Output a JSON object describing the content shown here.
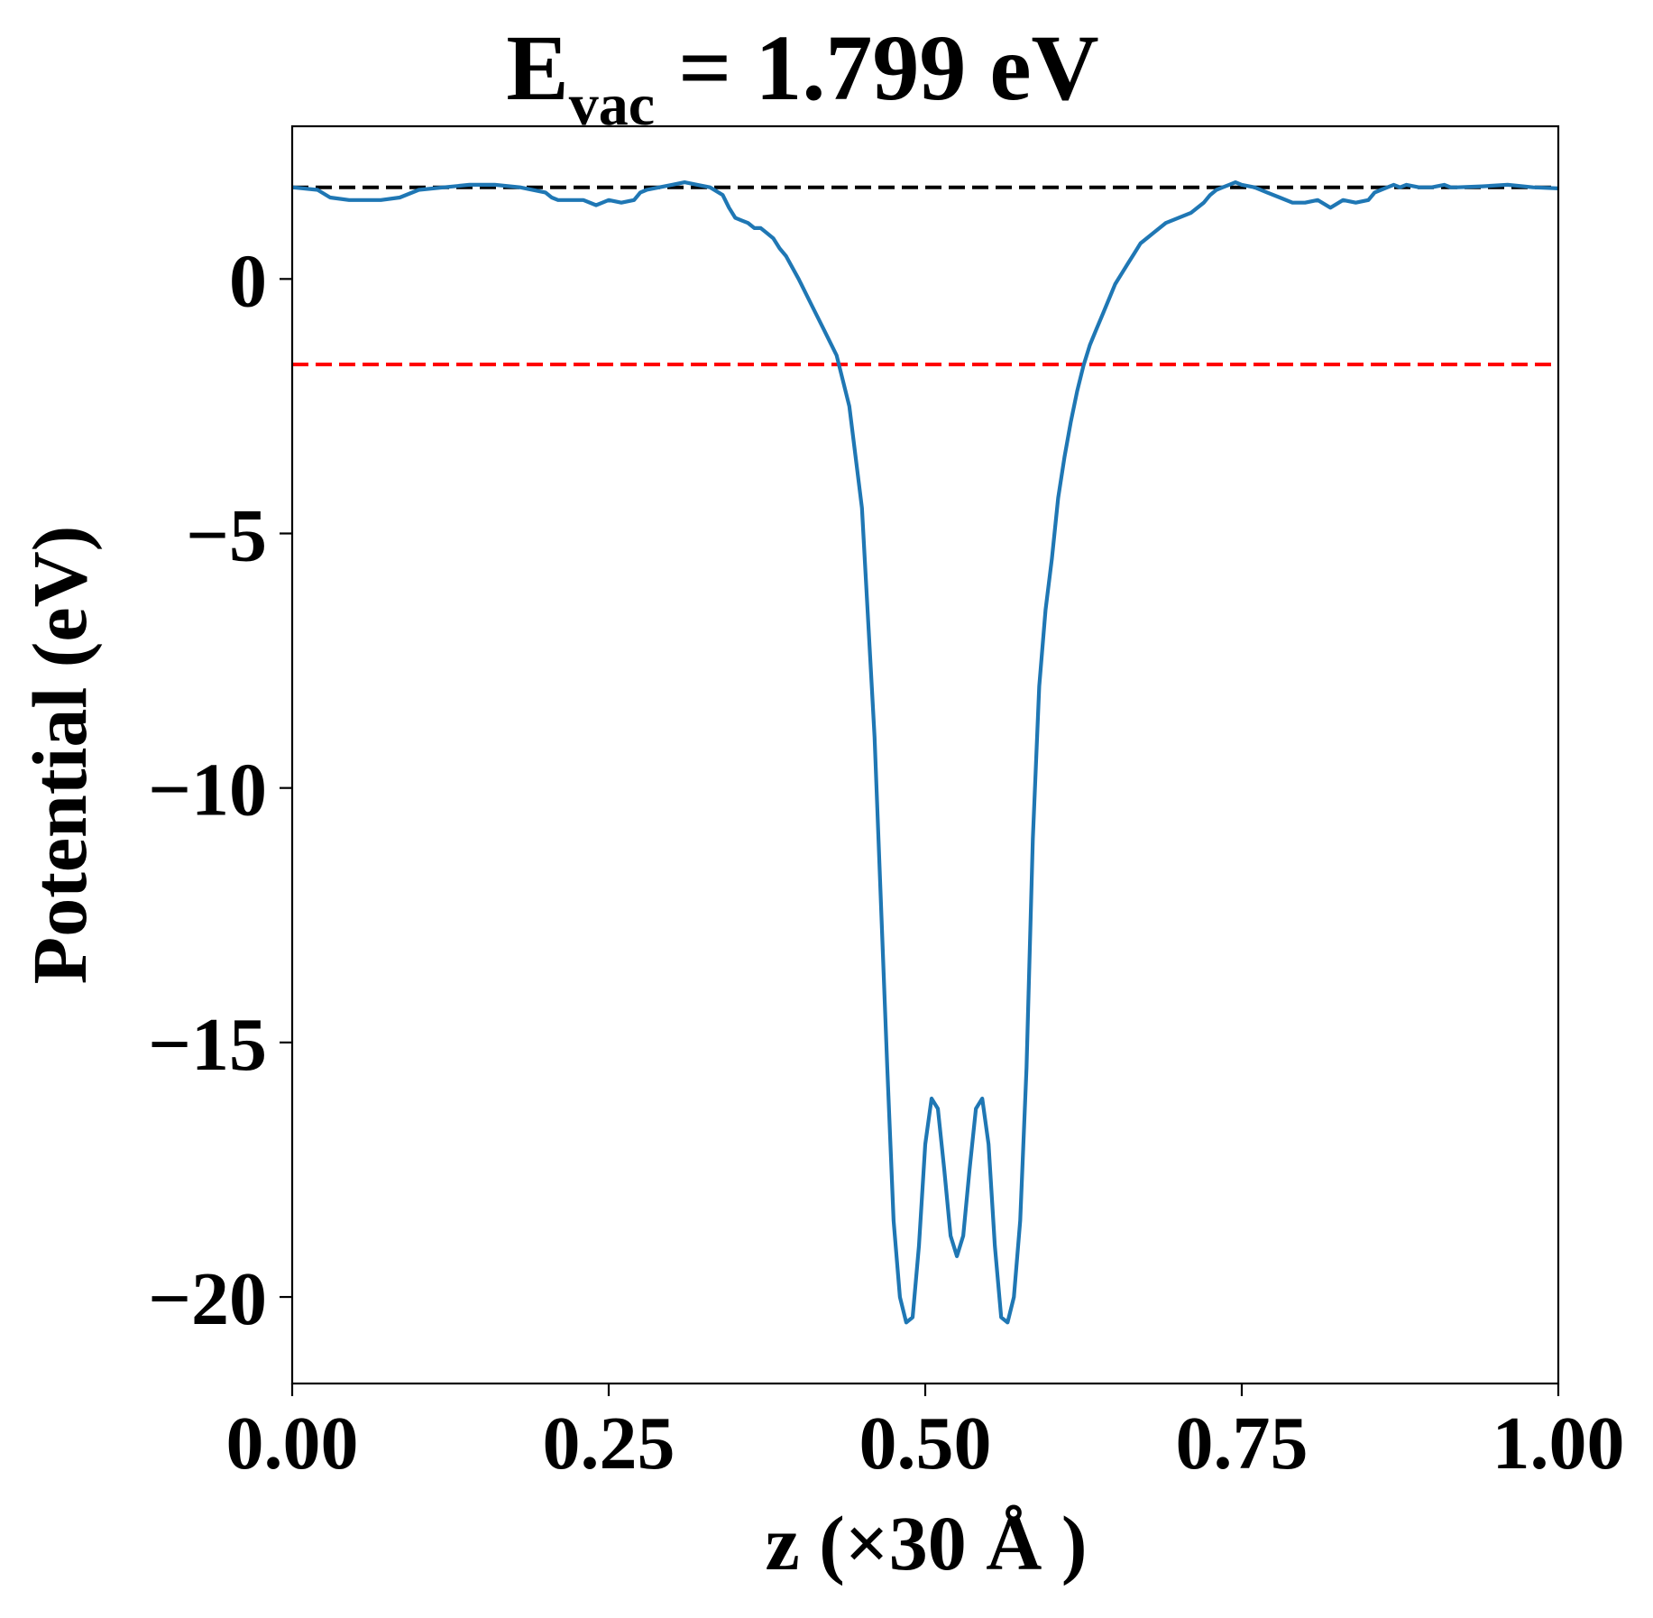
{
  "chart_data": {
    "type": "line",
    "title": {
      "base": "E",
      "sub": "vac",
      "rest": " = 1.799 eV"
    },
    "xlabel": "z (×30 Å )",
    "ylabel": "Potential (eV)",
    "xlim": [
      0.0,
      1.0
    ],
    "ylim": [
      -21.7,
      3.0
    ],
    "xticks": [
      0.0,
      0.25,
      0.5,
      0.75,
      1.0
    ],
    "xtick_labels": [
      "0.00",
      "0.25",
      "0.50",
      "0.75",
      "1.00"
    ],
    "yticks": [
      0,
      -5,
      -10,
      -15,
      -20
    ],
    "ytick_labels": [
      "0",
      "−5",
      "−10",
      "−15",
      "−20"
    ],
    "grid": false,
    "legend": "none",
    "hlines": [
      {
        "y": 1.799,
        "color": "#000000",
        "style": "dashed"
      },
      {
        "y": -1.68,
        "color": "#ff0000",
        "style": "dashed"
      }
    ],
    "series": [
      {
        "color": "#1f77b4",
        "x": [
          0.0,
          0.02,
          0.03,
          0.045,
          0.07,
          0.085,
          0.1,
          0.12,
          0.14,
          0.16,
          0.18,
          0.2,
          0.205,
          0.21,
          0.215,
          0.23,
          0.24,
          0.245,
          0.25,
          0.26,
          0.27,
          0.275,
          0.28,
          0.29,
          0.3,
          0.31,
          0.32,
          0.33,
          0.34,
          0.345,
          0.35,
          0.355,
          0.36,
          0.365,
          0.37,
          0.375,
          0.38,
          0.385,
          0.39,
          0.4,
          0.41,
          0.42,
          0.43,
          0.44,
          0.45,
          0.46,
          0.47,
          0.475,
          0.48,
          0.485,
          0.49,
          0.495,
          0.5,
          0.505,
          0.51,
          0.515,
          0.52,
          0.525,
          0.53,
          0.535,
          0.54,
          0.545,
          0.55,
          0.555,
          0.56,
          0.565,
          0.57,
          0.575,
          0.58,
          0.585,
          0.59,
          0.595,
          0.6,
          0.605,
          0.61,
          0.615,
          0.62,
          0.625,
          0.63,
          0.635,
          0.64,
          0.645,
          0.65,
          0.655,
          0.66,
          0.665,
          0.67,
          0.675,
          0.68,
          0.69,
          0.7,
          0.71,
          0.72,
          0.725,
          0.73,
          0.735,
          0.74,
          0.745,
          0.75,
          0.76,
          0.77,
          0.78,
          0.79,
          0.8,
          0.81,
          0.82,
          0.83,
          0.84,
          0.85,
          0.855,
          0.86,
          0.865,
          0.87,
          0.875,
          0.88,
          0.89,
          0.9,
          0.91,
          0.915,
          0.92,
          0.94,
          0.96,
          0.98,
          1.0
        ],
        "y": [
          1.8,
          1.75,
          1.6,
          1.55,
          1.55,
          1.6,
          1.75,
          1.8,
          1.85,
          1.85,
          1.8,
          1.7,
          1.6,
          1.55,
          1.55,
          1.55,
          1.45,
          1.5,
          1.55,
          1.5,
          1.55,
          1.7,
          1.75,
          1.8,
          1.85,
          1.9,
          1.85,
          1.8,
          1.65,
          1.4,
          1.2,
          1.15,
          1.1,
          1.0,
          1.0,
          0.9,
          0.8,
          0.6,
          0.45,
          0.0,
          -0.5,
          -1.0,
          -1.5,
          -2.5,
          -4.5,
          -9.0,
          -15.5,
          -18.5,
          -20.0,
          -20.5,
          -20.4,
          -19.0,
          -17.0,
          -16.1,
          -16.3,
          -17.5,
          -18.8,
          -19.2,
          -18.8,
          -17.5,
          -16.3,
          -16.1,
          -17.0,
          -19.0,
          -20.4,
          -20.5,
          -20.0,
          -18.5,
          -15.5,
          -11.0,
          -8.0,
          -6.5,
          -5.5,
          -4.3,
          -3.5,
          -2.8,
          -2.2,
          -1.7,
          -1.3,
          -1.0,
          -0.7,
          -0.4,
          -0.1,
          0.1,
          0.3,
          0.5,
          0.7,
          0.8,
          0.9,
          1.1,
          1.2,
          1.3,
          1.5,
          1.65,
          1.75,
          1.8,
          1.85,
          1.9,
          1.85,
          1.8,
          1.7,
          1.6,
          1.5,
          1.5,
          1.55,
          1.4,
          1.55,
          1.5,
          1.55,
          1.7,
          1.75,
          1.8,
          1.85,
          1.8,
          1.85,
          1.8,
          1.8,
          1.85,
          1.8,
          1.8,
          1.82,
          1.85,
          1.8,
          1.78
        ]
      }
    ]
  }
}
